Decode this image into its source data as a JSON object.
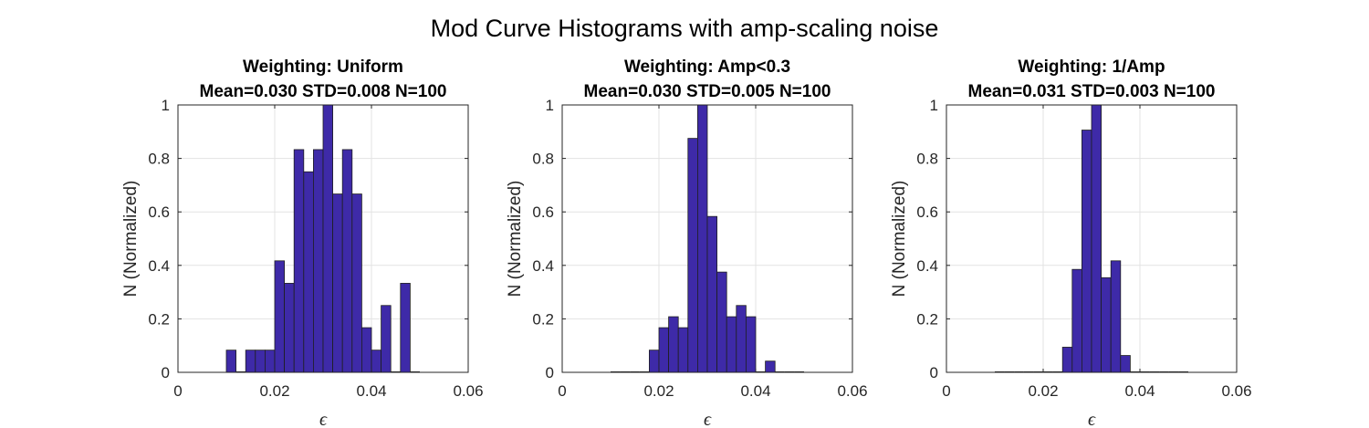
{
  "figure_title": "Mod Curve Histograms with amp-scaling noise",
  "bar_color": "#3e2aa8",
  "chart_data": [
    {
      "type": "bar",
      "title": "Weighting: Uniform",
      "subtitle": "Mean=0.030 STD=0.008 N=100",
      "xlabel": "ϵ",
      "ylabel": "N (Normalized)",
      "xlim": [
        0,
        0.06
      ],
      "ylim": [
        0,
        1
      ],
      "xticks": [
        "0",
        "0.02",
        "0.04",
        "0.06"
      ],
      "yticks": [
        "0",
        "0.2",
        "0.4",
        "0.6",
        "0.8",
        "1"
      ],
      "grid": true,
      "bin_start": 0.0,
      "bin_width": 0.002,
      "values": [
        0,
        0,
        0,
        0,
        0,
        0.083,
        0,
        0.083,
        0.083,
        0.083,
        0.417,
        0.333,
        0.833,
        0.75,
        0.833,
        1.0,
        0.667,
        0.833,
        0.667,
        0.167,
        0.083,
        0.25,
        0,
        0.333,
        0,
        0,
        0,
        0
      ]
    },
    {
      "type": "bar",
      "title": "Weighting: Amp<0.3",
      "subtitle": "Mean=0.030 STD=0.005 N=100",
      "xlabel": "ϵ",
      "ylabel": "N (Normalized)",
      "xlim": [
        0,
        0.06
      ],
      "ylim": [
        0,
        1
      ],
      "xticks": [
        "0",
        "0.02",
        "0.04",
        "0.06"
      ],
      "yticks": [
        "0",
        "0.2",
        "0.4",
        "0.6",
        "0.8",
        "1"
      ],
      "grid": true,
      "bin_start": 0.0,
      "bin_width": 0.002,
      "values": [
        0,
        0,
        0,
        0,
        0,
        0,
        0,
        0,
        0,
        0.083,
        0.167,
        0.208,
        0.167,
        0.875,
        1.0,
        0.583,
        0.375,
        0.208,
        0.25,
        0.208,
        0,
        0.042,
        0,
        0,
        0,
        0,
        0,
        0
      ]
    },
    {
      "type": "bar",
      "title": "Weighting: 1/Amp",
      "subtitle": "Mean=0.031 STD=0.003 N=100",
      "xlabel": "ϵ",
      "ylabel": "N (Normalized)",
      "xlim": [
        0,
        0.06
      ],
      "ylim": [
        0,
        1
      ],
      "xticks": [
        "0",
        "0.02",
        "0.04",
        "0.06"
      ],
      "yticks": [
        "0",
        "0.2",
        "0.4",
        "0.6",
        "0.8",
        "1"
      ],
      "grid": true,
      "bin_start": 0.0,
      "bin_width": 0.002,
      "values": [
        0,
        0,
        0,
        0,
        0,
        0,
        0,
        0,
        0,
        0,
        0,
        0,
        0.094,
        0.385,
        0.906,
        1.0,
        0.354,
        0.417,
        0.063,
        0,
        0,
        0,
        0,
        0,
        0,
        0,
        0,
        0
      ]
    }
  ]
}
